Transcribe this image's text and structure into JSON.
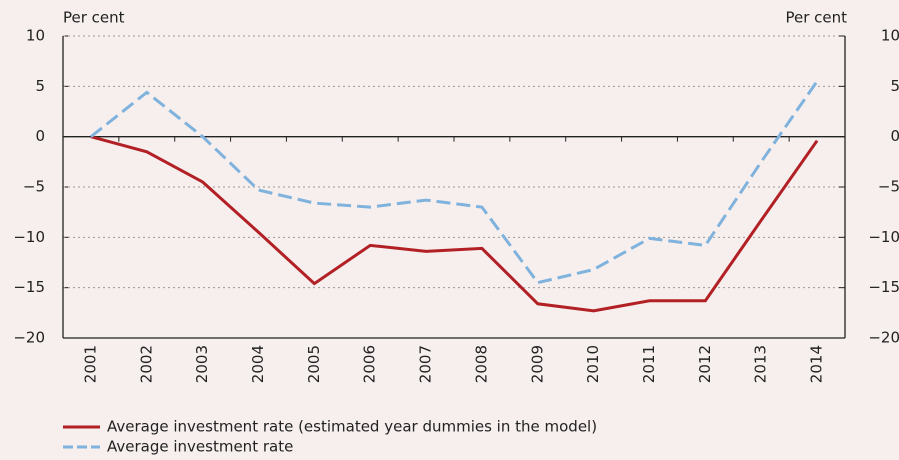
{
  "chart_data": {
    "type": "line",
    "y_label": "Per cent",
    "y2_label": "Per cent",
    "categories": [
      "2001",
      "2002",
      "2003",
      "2004",
      "2005",
      "2006",
      "2007",
      "2008",
      "2009",
      "2010",
      "2011",
      "2012",
      "2013",
      "2014"
    ],
    "series": [
      {
        "name": "Average investment rate (estimated year dummies in the model)",
        "color": "#b22025",
        "dash": "solid",
        "values": [
          0,
          -1.5,
          -4.5,
          -9.5,
          -14.6,
          -10.8,
          -11.4,
          -11.1,
          -16.6,
          -17.3,
          -16.3,
          -16.3,
          -8.3,
          -0.4
        ]
      },
      {
        "name": "Average investment rate",
        "color": "#7fb2dd",
        "dash": "dashed",
        "values": [
          0,
          4.4,
          0,
          -5.3,
          -6.6,
          -7.0,
          -6.3,
          -7.0,
          -14.5,
          -13.2,
          -10.1,
          -10.8,
          -2.5,
          5.5
        ]
      }
    ],
    "ylim": [
      -20,
      10
    ],
    "yticks": [
      {
        "value": -20,
        "label": "−20"
      },
      {
        "value": -15,
        "label": "−15"
      },
      {
        "value": -10,
        "label": "−10"
      },
      {
        "value": -5,
        "label": "−5"
      },
      0,
      5,
      10
    ],
    "y2lim": [
      -20,
      10
    ],
    "y2ticks": [
      {
        "value": -20,
        "label": "−20"
      },
      {
        "value": -15,
        "label": "−15"
      },
      {
        "value": -10,
        "label": "−10"
      },
      {
        "value": -5,
        "label": "−5"
      },
      0,
      5,
      10
    ],
    "grid": true
  }
}
